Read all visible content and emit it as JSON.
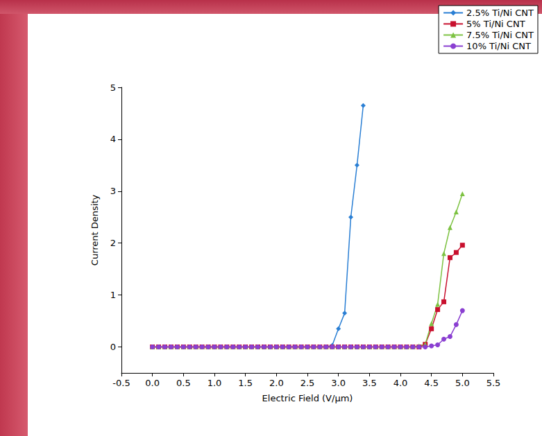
{
  "chart_data": {
    "type": "line",
    "x_label": "Electric Field (V/μm)",
    "y_label": "Current Density",
    "x": [
      0,
      0.1,
      0.2,
      0.3,
      0.4,
      0.5,
      0.6,
      0.7,
      0.8,
      0.9,
      1.0,
      1.1,
      1.2,
      1.3,
      1.4,
      1.5,
      1.6,
      1.7,
      1.8,
      1.9,
      2.0,
      2.1,
      2.2,
      2.3,
      2.4,
      2.5,
      2.6,
      2.7,
      2.8,
      2.9,
      3.0,
      3.1,
      3.2,
      3.3,
      3.4,
      3.5,
      3.6,
      3.7,
      3.8,
      3.9,
      4.0,
      4.1,
      4.2,
      4.3,
      4.4,
      4.5,
      4.6,
      4.7,
      4.8,
      4.9,
      5.0
    ],
    "series": [
      {
        "name": "2.5% Ti/Ni CNT",
        "color": "#2a7fd4",
        "marker": "diamond",
        "line_style": "solid",
        "values": [
          0,
          0,
          0,
          0,
          0,
          0,
          0,
          0,
          0,
          0,
          0,
          0,
          0,
          0,
          0,
          0,
          0,
          0,
          0,
          0,
          0,
          0,
          0,
          0,
          0,
          0,
          0,
          0,
          0,
          0.03,
          0.35,
          0.65,
          2.5,
          3.5,
          4.65,
          null,
          null,
          null,
          null,
          null,
          null,
          null,
          null,
          null,
          null,
          null,
          null,
          null,
          null,
          null,
          null
        ]
      },
      {
        "name": "5% Ti/Ni CNT",
        "color": "#c8102e",
        "marker": "square",
        "line_style": "solid",
        "values": [
          0,
          0,
          0,
          0,
          0,
          0,
          0,
          0,
          0,
          0,
          0,
          0,
          0,
          0,
          0,
          0,
          0,
          0,
          0,
          0,
          0,
          0,
          0,
          0,
          0,
          0,
          0,
          0,
          0,
          0,
          0,
          0,
          0,
          0,
          0,
          0,
          0,
          0,
          0,
          0,
          0,
          0,
          0,
          0,
          0.05,
          0.35,
          0.72,
          0.87,
          1.72,
          1.82,
          1.96
        ]
      },
      {
        "name": "7.5% Ti/Ni CNT",
        "color": "#7dc242",
        "marker": "triangle",
        "line_style": "solid",
        "values": [
          0,
          0,
          0,
          0,
          0,
          0,
          0,
          0,
          0,
          0,
          0,
          0,
          0,
          0,
          0,
          0,
          0,
          0,
          0,
          0,
          0,
          0,
          0,
          0,
          0,
          0,
          0,
          0,
          0,
          0,
          0,
          0,
          0,
          0,
          0,
          0,
          0,
          0,
          0,
          0,
          0,
          0,
          0,
          0.02,
          0.05,
          0.45,
          0.82,
          1.8,
          2.3,
          2.6,
          2.95
        ]
      },
      {
        "name": "10% Ti/Ni CNT",
        "color": "#8a3fd1",
        "marker": "circle",
        "line_style": "solid",
        "values": [
          0,
          0,
          0,
          0,
          0,
          0,
          0,
          0,
          0,
          0,
          0,
          0,
          0,
          0,
          0,
          0,
          0,
          0,
          0,
          0,
          0,
          0,
          0,
          0,
          0,
          0,
          0,
          0,
          0,
          0,
          0,
          0,
          0,
          0,
          0,
          0,
          0,
          0,
          0,
          0,
          0,
          0,
          0,
          0,
          0,
          0.02,
          0.04,
          0.15,
          0.2,
          0.43,
          0.7
        ]
      }
    ],
    "xlim": [
      -0.5,
      5.5
    ],
    "xticks": [
      -0.5,
      {
        "value": 0,
        "label": "0.0"
      },
      0.5,
      {
        "value": 1,
        "label": "1.0"
      },
      1.5,
      {
        "value": 2,
        "label": "2.0"
      },
      2.5,
      {
        "value": 3,
        "label": "3.0"
      },
      3.5,
      {
        "value": 4,
        "label": "4.0"
      },
      4.5,
      {
        "value": 5,
        "label": "5.0"
      },
      5.5
    ],
    "ylim": [
      -0.5,
      5
    ],
    "yticks": [
      0,
      1,
      2,
      3,
      4,
      5
    ],
    "grid": false,
    "legend": "top-right"
  }
}
